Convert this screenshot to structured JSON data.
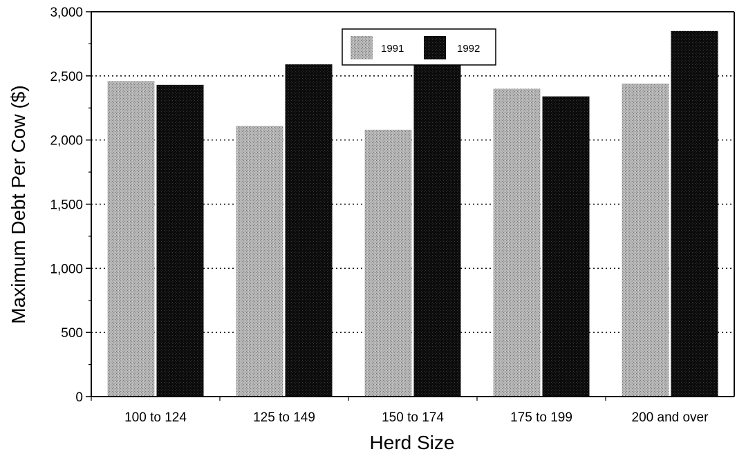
{
  "chart_data": {
    "type": "bar",
    "title": "",
    "xlabel": "Herd Size",
    "ylabel": "Maximum Debt Per Cow ($)",
    "categories": [
      "100 to 124",
      "125 to 149",
      "150 to 174",
      "175 to 199",
      "200 and over"
    ],
    "series": [
      {
        "name": "1991",
        "color": "#a8a8a8",
        "values": [
          2460,
          2110,
          2080,
          2400,
          2440
        ]
      },
      {
        "name": "1992",
        "color": "#111111",
        "values": [
          2430,
          2590,
          2610,
          2340,
          2850
        ]
      }
    ],
    "ylim": [
      0,
      3000
    ],
    "yticks": [
      0,
      500,
      1000,
      1500,
      2000,
      2500,
      3000
    ],
    "ytick_labels": [
      "0",
      "500",
      "1,000",
      "1,500",
      "2,000",
      "2,500",
      "3,000"
    ],
    "grid": "horizontal-dotted",
    "legend_position": "top-center"
  }
}
